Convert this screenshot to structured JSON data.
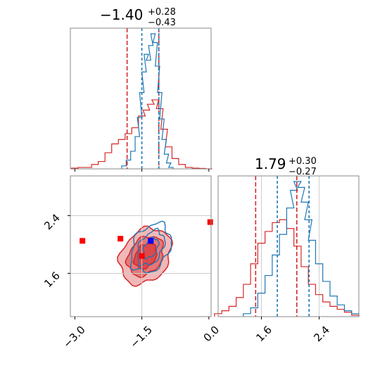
{
  "chart_data": {
    "type": "corner",
    "colors": {
      "red": "#d62728",
      "blue": "#1f77b4",
      "grid": "#cccccc",
      "axis": "#888888"
    },
    "params": [
      {
        "name": "",
        "title": {
          "median": "−1.40",
          "plus": "+0.28",
          "minus": "−0.43"
        },
        "range": [
          -3.1,
          0.05
        ],
        "ticks": [
          -3.0,
          -1.5,
          0.0
        ],
        "tick_labels": [
          "−3.0",
          "−1.5",
          "0.0"
        ]
      },
      {
        "name": "",
        "title": {
          "median": "1.79",
          "plus": "+0.30",
          "minus": "−0.27"
        },
        "range": [
          1.0,
          2.95
        ],
        "ticks": [
          1.6,
          2.4
        ],
        "tick_labels": [
          "1.6",
          "2.4"
        ]
      }
    ],
    "hist1d": [
      {
        "param": 0,
        "red_quantiles": [
          -1.83,
          -1.12
        ],
        "blue_quantiles": [
          -1.5,
          -1.12
        ],
        "red": {
          "x": [
            -3.0,
            -2.85,
            -2.7,
            -2.55,
            -2.4,
            -2.25,
            -2.1,
            -1.95,
            -1.8,
            -1.65,
            -1.5,
            -1.4,
            -1.3,
            -1.2,
            -1.1,
            -1.0,
            -0.9,
            -0.75,
            -0.6,
            -0.45,
            -0.3,
            -0.15,
            0.0
          ],
          "y": [
            0.5,
            1,
            1,
            3,
            5,
            11,
            17,
            20,
            24,
            28,
            36,
            40,
            44,
            47,
            41,
            27,
            15,
            7,
            3,
            1,
            0.5,
            0.3,
            0
          ]
        },
        "blue": {
          "x": [
            -1.9,
            -1.8,
            -1.7,
            -1.6,
            -1.55,
            -1.5,
            -1.45,
            -1.4,
            -1.35,
            -1.3,
            -1.25,
            -1.2,
            -1.15,
            -1.1,
            -1.05,
            -1.0,
            -0.95,
            -0.9,
            -0.85
          ],
          "y": [
            2,
            6,
            12,
            22,
            35,
            52,
            66,
            78,
            74,
            84,
            92,
            86,
            70,
            52,
            34,
            20,
            10,
            4,
            1
          ]
        }
      },
      {
        "param": 1,
        "red_quantiles": [
          1.52,
          2.09
        ],
        "blue_quantiles": [
          1.82,
          2.26
        ],
        "red": {
          "x": [
            1.0,
            1.1,
            1.2,
            1.3,
            1.4,
            1.5,
            1.6,
            1.7,
            1.8,
            1.9,
            2.0,
            2.1,
            2.2,
            2.3,
            2.4,
            2.5,
            2.6,
            2.7,
            2.8,
            2.9
          ],
          "y": [
            2,
            4,
            7,
            13,
            22,
            36,
            50,
            58,
            64,
            66,
            60,
            48,
            34,
            22,
            15,
            10,
            7,
            5,
            3,
            1
          ]
        },
        "blue": {
          "x": [
            1.4,
            1.5,
            1.6,
            1.7,
            1.8,
            1.9,
            2.0,
            2.05,
            2.1,
            2.15,
            2.2,
            2.25,
            2.3,
            2.4,
            2.5,
            2.6,
            2.7,
            2.8,
            2.9
          ],
          "y": [
            2,
            6,
            16,
            28,
            42,
            56,
            74,
            86,
            92,
            88,
            78,
            66,
            52,
            36,
            24,
            14,
            8,
            4,
            2
          ]
        }
      }
    ],
    "hist2d": {
      "red_levels": [
        {
          "rx": 0.52,
          "ry": 0.42,
          "alpha": 0.55
        },
        {
          "rx": 0.36,
          "ry": 0.3,
          "alpha": 0.75
        },
        {
          "rx": 0.22,
          "ry": 0.19,
          "alpha": 0.95
        }
      ],
      "red_center": [
        -1.42,
        1.84
      ],
      "blue_levels": [
        {
          "rx": 0.4,
          "ry": 0.36
        },
        {
          "rx": 0.26,
          "ry": 0.26
        },
        {
          "rx": 0.14,
          "ry": 0.15
        }
      ],
      "blue_center": [
        -1.3,
        1.95
      ],
      "truth_lines": {
        "x": -1.5,
        "y": 2.4,
        "y2": 1.6
      },
      "red_markers": [
        {
          "x": -2.83,
          "y": 2.05
        },
        {
          "x": -1.98,
          "y": 2.08
        },
        {
          "x": -1.5,
          "y": 1.84
        },
        {
          "x": 0.03,
          "y": 2.31
        }
      ],
      "blue_markers": [
        {
          "x": -1.3,
          "y": 2.05
        }
      ]
    }
  }
}
